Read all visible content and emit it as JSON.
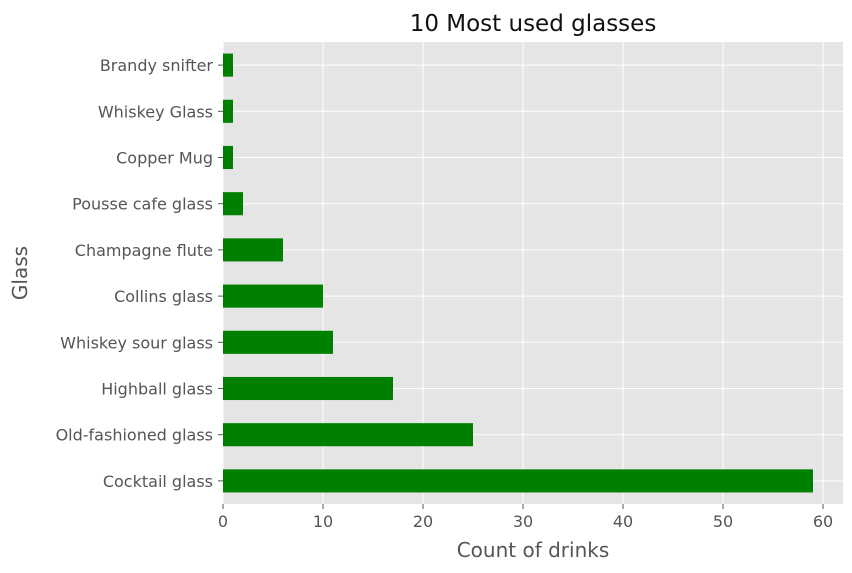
{
  "chart_data": {
    "type": "bar",
    "orientation": "horizontal",
    "title": "10 Most used glasses",
    "xlabel": "Count of drinks",
    "ylabel": "Glass",
    "categories": [
      "Cocktail glass",
      "Old-fashioned glass",
      "Highball glass",
      "Whiskey sour glass",
      "Collins glass",
      "Champagne flute",
      "Pousse cafe glass",
      "Copper Mug",
      "Whiskey Glass",
      "Brandy snifter"
    ],
    "values": [
      59,
      25,
      17,
      11,
      10,
      6,
      2,
      1,
      1,
      1
    ],
    "xlim": [
      0,
      62
    ],
    "xticks": [
      0,
      10,
      20,
      30,
      40,
      50,
      60
    ],
    "bar_color": "#008000",
    "background_color": "#e5e5e5",
    "grid": true
  }
}
